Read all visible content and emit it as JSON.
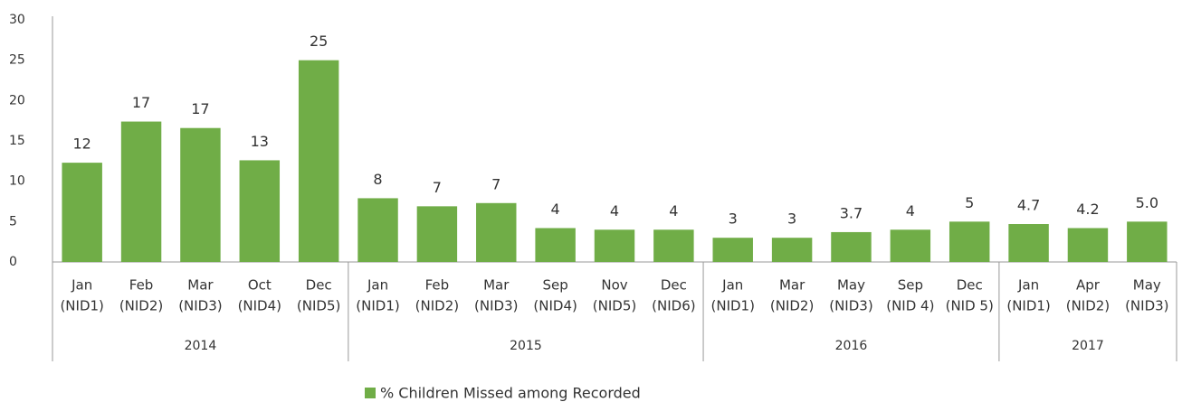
{
  "chart_data": {
    "type": "bar",
    "color": "#70ad47",
    "ylim": [
      0,
      30
    ],
    "yticks": [
      0,
      5,
      10,
      15,
      20,
      25,
      30
    ],
    "grid": false,
    "legend": "bottom",
    "series_name": "% Children Missed among Recorded",
    "groups": [
      {
        "name": "2014",
        "categories": [
          [
            "Jan",
            "(NID1)"
          ],
          [
            "Feb",
            "(NID2)"
          ],
          [
            "Mar",
            "(NID3)"
          ],
          [
            "Oct",
            "(NID4)"
          ],
          [
            "Dec",
            "(NID5)"
          ]
        ]
      },
      {
        "name": "2015",
        "categories": [
          [
            "Jan",
            "(NID1)"
          ],
          [
            "Feb",
            "(NID2)"
          ],
          [
            "Mar",
            "(NID3)"
          ],
          [
            "Sep",
            "(NID4)"
          ],
          [
            "Nov",
            "(NID5)"
          ],
          [
            "Dec",
            "(NID6)"
          ]
        ]
      },
      {
        "name": "2016",
        "categories": [
          [
            "Jan",
            "(NID1)"
          ],
          [
            "Mar",
            "(NID2)"
          ],
          [
            "May",
            "(NID3)"
          ],
          [
            "Sep",
            "(NID 4)"
          ],
          [
            "Dec",
            "(NID 5)"
          ]
        ]
      },
      {
        "name": "2017",
        "categories": [
          [
            "Jan",
            "(NID1)"
          ],
          [
            "Apr",
            "(NID2)"
          ],
          [
            "May",
            "(NID3)"
          ]
        ]
      }
    ],
    "values": [
      12.3,
      17.4,
      16.6,
      12.6,
      25,
      7.9,
      6.9,
      7.3,
      4.2,
      4.0,
      4.0,
      3.0,
      3.0,
      3.7,
      4.0,
      5.0,
      4.7,
      4.2,
      5.0
    ],
    "value_labels": [
      "12",
      "17",
      "17",
      "13",
      "25",
      "8",
      "7",
      "7",
      "4",
      "4",
      "4",
      "3",
      "3",
      "3.7",
      "4",
      "5",
      "4.7",
      "4.2",
      "5.0"
    ]
  }
}
